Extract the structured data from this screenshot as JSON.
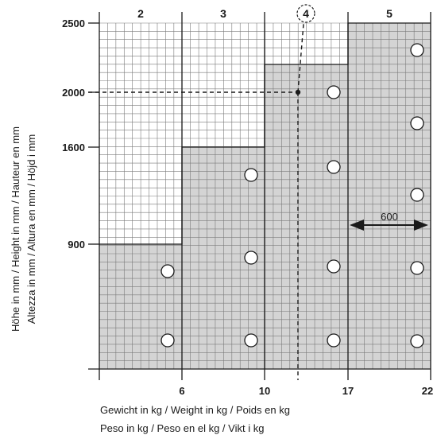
{
  "diagram": {
    "columns": [
      {
        "label": "2",
        "weight_from": 0,
        "weight_to": 6,
        "max_height": 900,
        "holes": 2
      },
      {
        "label": "3",
        "weight_from": 6,
        "weight_to": 10,
        "max_height": 1600,
        "holes": 3
      },
      {
        "label": "4",
        "weight_from": 10,
        "weight_to": 17,
        "max_height": 2200,
        "holes": 4
      },
      {
        "label": "5",
        "weight_from": 17,
        "weight_to": 22,
        "max_height": 2500,
        "holes": 5
      }
    ],
    "y_ticks": [
      "2500",
      "2000",
      "1600",
      "900"
    ],
    "x_ticks": [
      "6",
      "10",
      "17",
      "22"
    ],
    "example": {
      "weight": 13,
      "height": 2000,
      "circled_label": "4"
    },
    "dimension": {
      "label": "600"
    },
    "y_axis_label_line1": "Höhe in mm / Height in mm / Hauteur en mm",
    "y_axis_label_line2": "Altezza in mm / Altura en  mm / Höjd i mm",
    "x_axis_label_line1": "Gewicht in kg / Weight in kg / Poids en kg",
    "x_axis_label_line2": "Peso in kg / Peso en el kg / Vikt i kg",
    "colors": {
      "fill": "#d4d4d4",
      "grid": "#7a7a7a",
      "line": "#1a1a1a"
    }
  }
}
